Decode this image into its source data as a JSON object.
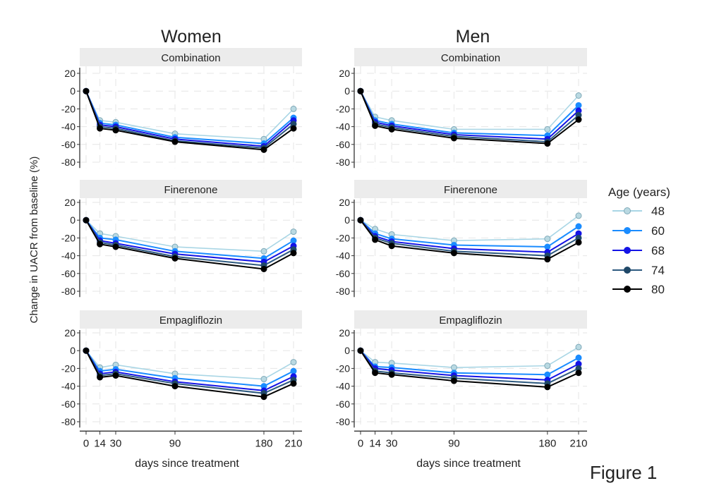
{
  "figure_label": "Figure 1",
  "ylabel": "Change in UACR from baseline (%)",
  "xlabel": "days since treatment",
  "legend": {
    "title": "Age (years)",
    "placement": "right",
    "items": [
      {
        "label": "48",
        "color": "#a9d6e5"
      },
      {
        "label": "60",
        "color": "#1a8cff"
      },
      {
        "label": "68",
        "color": "#1414e6"
      },
      {
        "label": "74",
        "color": "#2e5a80"
      },
      {
        "label": "80",
        "color": "#000000"
      }
    ]
  },
  "chart_data": [
    {
      "type": "line",
      "column": "Women",
      "title": "Combination",
      "x": [
        0,
        14,
        30,
        90,
        180,
        210
      ],
      "ylim": [
        -85,
        25
      ],
      "yticks": [
        20,
        0,
        -20,
        -40,
        -60,
        -80
      ],
      "xticks": [
        0,
        14,
        30,
        90,
        180,
        210
      ],
      "grid": true,
      "series": [
        {
          "name": "48",
          "values": [
            0,
            -33,
            -35,
            -48,
            -54,
            -20
          ]
        },
        {
          "name": "60",
          "values": [
            0,
            -36,
            -38,
            -52,
            -59,
            -30
          ]
        },
        {
          "name": "68",
          "values": [
            0,
            -38,
            -40,
            -54,
            -62,
            -33
          ]
        },
        {
          "name": "74",
          "values": [
            0,
            -40,
            -42,
            -56,
            -64,
            -37
          ]
        },
        {
          "name": "80",
          "values": [
            0,
            -42,
            -44,
            -57,
            -66,
            -42
          ]
        }
      ]
    },
    {
      "type": "line",
      "column": "Men",
      "title": "Combination",
      "x": [
        0,
        14,
        30,
        90,
        180,
        210
      ],
      "ylim": [
        -85,
        25
      ],
      "yticks": [
        20,
        0,
        -20,
        -40,
        -60,
        -80
      ],
      "xticks": [
        0,
        14,
        30,
        90,
        180,
        210
      ],
      "grid": true,
      "series": [
        {
          "name": "48",
          "values": [
            0,
            -29,
            -33,
            -43,
            -43,
            -5
          ]
        },
        {
          "name": "60",
          "values": [
            0,
            -33,
            -37,
            -47,
            -50,
            -16
          ]
        },
        {
          "name": "68",
          "values": [
            0,
            -35,
            -39,
            -49,
            -54,
            -22
          ]
        },
        {
          "name": "74",
          "values": [
            0,
            -37,
            -41,
            -51,
            -57,
            -27
          ]
        },
        {
          "name": "80",
          "values": [
            0,
            -39,
            -43,
            -53,
            -59,
            -32
          ]
        }
      ]
    },
    {
      "type": "line",
      "column": "Women",
      "title": "Finerenone",
      "x": [
        0,
        14,
        30,
        90,
        180,
        210
      ],
      "ylim": [
        -85,
        25
      ],
      "yticks": [
        20,
        0,
        -20,
        -40,
        -60,
        -80
      ],
      "xticks": [
        0,
        14,
        30,
        90,
        180,
        210
      ],
      "grid": true,
      "series": [
        {
          "name": "48",
          "values": [
            0,
            -15,
            -18,
            -30,
            -35,
            -13
          ]
        },
        {
          "name": "60",
          "values": [
            0,
            -20,
            -22,
            -35,
            -43,
            -23
          ]
        },
        {
          "name": "68",
          "values": [
            0,
            -23,
            -26,
            -38,
            -47,
            -29
          ]
        },
        {
          "name": "74",
          "values": [
            0,
            -25,
            -28,
            -41,
            -51,
            -33
          ]
        },
        {
          "name": "80",
          "values": [
            0,
            -27,
            -30,
            -43,
            -55,
            -37
          ]
        }
      ]
    },
    {
      "type": "line",
      "column": "Men",
      "title": "Finerenone",
      "x": [
        0,
        14,
        30,
        90,
        180,
        210
      ],
      "ylim": [
        -85,
        25
      ],
      "yticks": [
        20,
        0,
        -20,
        -40,
        -60,
        -80
      ],
      "xticks": [
        0,
        14,
        30,
        90,
        180,
        210
      ],
      "grid": true,
      "series": [
        {
          "name": "48",
          "values": [
            0,
            -10,
            -16,
            -23,
            -21,
            5
          ]
        },
        {
          "name": "60",
          "values": [
            0,
            -15,
            -21,
            -28,
            -30,
            -7
          ]
        },
        {
          "name": "68",
          "values": [
            0,
            -18,
            -24,
            -32,
            -36,
            -15
          ]
        },
        {
          "name": "74",
          "values": [
            0,
            -20,
            -26,
            -35,
            -40,
            -20
          ]
        },
        {
          "name": "80",
          "values": [
            0,
            -22,
            -29,
            -37,
            -44,
            -25
          ]
        }
      ]
    },
    {
      "type": "line",
      "column": "Women",
      "title": "Empagliflozin",
      "x": [
        0,
        14,
        30,
        90,
        180,
        210
      ],
      "ylim": [
        -85,
        25
      ],
      "yticks": [
        20,
        0,
        -20,
        -40,
        -60,
        -80
      ],
      "xticks": [
        0,
        14,
        30,
        90,
        180,
        210
      ],
      "grid": true,
      "series": [
        {
          "name": "48",
          "values": [
            0,
            -19,
            -16,
            -26,
            -32,
            -13
          ]
        },
        {
          "name": "60",
          "values": [
            0,
            -23,
            -21,
            -31,
            -40,
            -23
          ]
        },
        {
          "name": "68",
          "values": [
            0,
            -26,
            -24,
            -35,
            -45,
            -29
          ]
        },
        {
          "name": "74",
          "values": [
            0,
            -28,
            -26,
            -37,
            -48,
            -33
          ]
        },
        {
          "name": "80",
          "values": [
            0,
            -30,
            -28,
            -40,
            -52,
            -37
          ]
        }
      ]
    },
    {
      "type": "line",
      "column": "Men",
      "title": "Empagliflozin",
      "x": [
        0,
        14,
        30,
        90,
        180,
        210
      ],
      "ylim": [
        -85,
        25
      ],
      "yticks": [
        20,
        0,
        -20,
        -40,
        -60,
        -80
      ],
      "xticks": [
        0,
        14,
        30,
        90,
        180,
        210
      ],
      "grid": true,
      "series": [
        {
          "name": "48",
          "values": [
            0,
            -13,
            -14,
            -19,
            -17,
            4
          ]
        },
        {
          "name": "60",
          "values": [
            0,
            -18,
            -19,
            -25,
            -27,
            -8
          ]
        },
        {
          "name": "68",
          "values": [
            0,
            -20,
            -22,
            -28,
            -33,
            -15
          ]
        },
        {
          "name": "74",
          "values": [
            0,
            -23,
            -25,
            -31,
            -37,
            -20
          ]
        },
        {
          "name": "80",
          "values": [
            0,
            -25,
            -27,
            -34,
            -41,
            -25
          ]
        }
      ]
    }
  ],
  "columns": [
    "Women",
    "Men"
  ]
}
